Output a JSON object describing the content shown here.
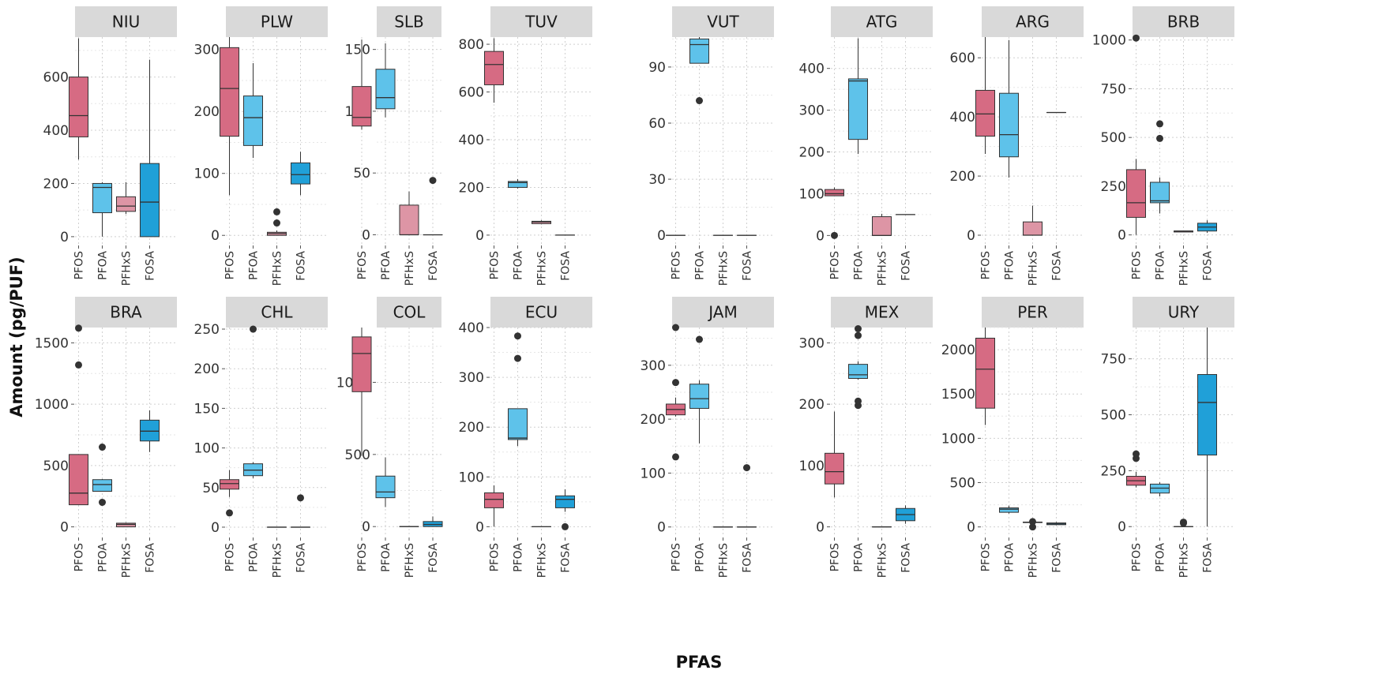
{
  "chart_data": {
    "type": "box",
    "xlabel": "PFAS",
    "ylabel": "Amount (pg/PUF)",
    "categories": [
      "PFOS",
      "PFOA",
      "PFHxS",
      "FOSA"
    ],
    "colors": {
      "PFOS": "#d66b83",
      "PFOA": "#5ec2ea",
      "PFHxS": "#dd95a5",
      "FOSA": "#20a0d8"
    },
    "grid": "dotted",
    "panels": [
      {
        "name": "NIU",
        "ylim": [
          -30,
          750
        ],
        "yticks": [
          0,
          200,
          400,
          600
        ],
        "boxes": [
          {
            "cat": "PFOS",
            "min": 290,
            "q1": 375,
            "median": 455,
            "q3": 600,
            "max": 745,
            "outliers": []
          },
          {
            "cat": "PFOA",
            "min": 0,
            "q1": 90,
            "median": 185,
            "q3": 200,
            "max": 205,
            "outliers": []
          },
          {
            "cat": "PFHxS",
            "min": 85,
            "q1": 95,
            "median": 115,
            "q3": 150,
            "max": 205,
            "outliers": []
          },
          {
            "cat": "FOSA",
            "min": 0,
            "q1": 0,
            "median": 130,
            "q3": 275,
            "max": 665,
            "outliers": []
          }
        ]
      },
      {
        "name": "PLW",
        "ylim": [
          -15,
          320
        ],
        "yticks": [
          0,
          100,
          200,
          300
        ],
        "boxes": [
          {
            "cat": "PFOS",
            "min": 65,
            "q1": 160,
            "median": 237,
            "q3": 303,
            "max": 320,
            "outliers": []
          },
          {
            "cat": "PFOA",
            "min": 125,
            "q1": 145,
            "median": 190,
            "q3": 225,
            "max": 278,
            "outliers": []
          },
          {
            "cat": "PFHxS",
            "min": 0,
            "q1": 0,
            "median": 3,
            "q3": 5,
            "max": 8,
            "outliers": [
              20,
              38
            ]
          },
          {
            "cat": "FOSA",
            "min": 65,
            "q1": 83,
            "median": 98,
            "q3": 117,
            "max": 135,
            "outliers": []
          }
        ]
      },
      {
        "name": "SLB",
        "ylim": [
          -8,
          160
        ],
        "yticks": [
          0,
          50,
          100,
          150
        ],
        "boxes": [
          {
            "cat": "PFOS",
            "min": 85,
            "q1": 88,
            "median": 95,
            "q3": 120,
            "max": 158,
            "outliers": []
          },
          {
            "cat": "PFOA",
            "min": 95,
            "q1": 102,
            "median": 111,
            "q3": 134,
            "max": 155,
            "outliers": []
          },
          {
            "cat": "PFHxS",
            "min": 0,
            "q1": 0,
            "median": 0,
            "q3": 24,
            "max": 35,
            "outliers": []
          },
          {
            "cat": "FOSA",
            "min": 0,
            "q1": 0,
            "median": 0,
            "q3": 0,
            "max": 0,
            "outliers": [
              44
            ]
          }
        ]
      },
      {
        "name": "TUV",
        "ylim": [
          -40,
          830
        ],
        "yticks": [
          0,
          200,
          400,
          600,
          800
        ],
        "boxes": [
          {
            "cat": "PFOS",
            "min": 555,
            "q1": 630,
            "median": 715,
            "q3": 770,
            "max": 825,
            "outliers": []
          },
          {
            "cat": "PFOA",
            "min": 195,
            "q1": 200,
            "median": 220,
            "q3": 225,
            "max": 235,
            "outliers": []
          },
          {
            "cat": "PFHxS",
            "min": 45,
            "q1": 48,
            "median": 55,
            "q3": 58,
            "max": 62,
            "outliers": []
          },
          {
            "cat": "FOSA",
            "min": 0,
            "q1": 0,
            "median": 0,
            "q3": 0,
            "max": 0,
            "outliers": []
          }
        ]
      },
      {
        "name": "VUT",
        "ylim": [
          -5,
          106
        ],
        "yticks": [
          0,
          30,
          60,
          90
        ],
        "boxes": [
          {
            "cat": "PFOS",
            "min": 0,
            "q1": 0,
            "median": 0,
            "q3": 0,
            "max": 0,
            "outliers": []
          },
          {
            "cat": "PFOA",
            "min": 92,
            "q1": 92,
            "median": 102,
            "q3": 105,
            "max": 106,
            "outliers": [
              72
            ]
          },
          {
            "cat": "PFHxS",
            "min": 0,
            "q1": 0,
            "median": 0,
            "q3": 0,
            "max": 0,
            "outliers": []
          },
          {
            "cat": "FOSA",
            "min": 0,
            "q1": 0,
            "median": 0,
            "q3": 0,
            "max": 0,
            "outliers": []
          }
        ]
      },
      {
        "name": "ATG",
        "ylim": [
          -22,
          475
        ],
        "yticks": [
          0,
          100,
          200,
          300,
          400
        ],
        "boxes": [
          {
            "cat": "PFOS",
            "min": 95,
            "q1": 95,
            "median": 100,
            "q3": 110,
            "max": 115,
            "outliers": [
              0
            ]
          },
          {
            "cat": "PFOA",
            "min": 195,
            "q1": 230,
            "median": 370,
            "q3": 375,
            "max": 472,
            "outliers": []
          },
          {
            "cat": "PFHxS",
            "min": 0,
            "q1": 0,
            "median": 0,
            "q3": 45,
            "max": 52,
            "outliers": []
          },
          {
            "cat": "FOSA",
            "min": 50,
            "q1": 50,
            "median": 50,
            "q3": 50,
            "max": 50,
            "outliers": []
          }
        ]
      },
      {
        "name": "ARG",
        "ylim": [
          -32,
          670
        ],
        "yticks": [
          0,
          200,
          400,
          600
        ],
        "boxes": [
          {
            "cat": "PFOS",
            "min": 275,
            "q1": 335,
            "median": 410,
            "q3": 490,
            "max": 670,
            "outliers": []
          },
          {
            "cat": "PFOA",
            "min": 195,
            "q1": 265,
            "median": 340,
            "q3": 480,
            "max": 660,
            "outliers": []
          },
          {
            "cat": "PFHxS",
            "min": 0,
            "q1": 0,
            "median": 0,
            "q3": 45,
            "max": 100,
            "outliers": []
          },
          {
            "cat": "FOSA",
            "min": 415,
            "q1": 415,
            "median": 415,
            "q3": 415,
            "max": 415,
            "outliers": []
          }
        ]
      },
      {
        "name": "BRB",
        "ylim": [
          -50,
          1015
        ],
        "yticks": [
          0,
          250,
          500,
          750,
          1000
        ],
        "boxes": [
          {
            "cat": "PFOS",
            "min": 0,
            "q1": 90,
            "median": 165,
            "q3": 335,
            "max": 390,
            "outliers": [
              1010
            ]
          },
          {
            "cat": "PFOA",
            "min": 110,
            "q1": 165,
            "median": 175,
            "q3": 270,
            "max": 295,
            "outliers": [
              495,
              570
            ]
          },
          {
            "cat": "PFHxS",
            "min": 15,
            "q1": 15,
            "median": 20,
            "q3": 20,
            "max": 22,
            "outliers": []
          },
          {
            "cat": "FOSA",
            "min": 10,
            "q1": 20,
            "median": 40,
            "q3": 60,
            "max": 75,
            "outliers": []
          }
        ]
      },
      {
        "name": "BRA",
        "ylim": [
          -80,
          1625
        ],
        "yticks": [
          0,
          500,
          1000,
          1500
        ],
        "boxes": [
          {
            "cat": "PFOS",
            "min": 180,
            "q1": 180,
            "median": 275,
            "q3": 590,
            "max": 590,
            "outliers": [
              1320,
              1620
            ]
          },
          {
            "cat": "PFOA",
            "min": 290,
            "q1": 290,
            "median": 345,
            "q3": 385,
            "max": 390,
            "outliers": [
              200,
              650
            ]
          },
          {
            "cat": "PFHxS",
            "min": 0,
            "q1": 0,
            "median": 20,
            "q3": 30,
            "max": 35,
            "outliers": []
          },
          {
            "cat": "FOSA",
            "min": 610,
            "q1": 700,
            "median": 780,
            "q3": 870,
            "max": 950,
            "outliers": []
          }
        ]
      },
      {
        "name": "CHL",
        "ylim": [
          -12,
          252
        ],
        "yticks": [
          0,
          50,
          100,
          150,
          200,
          250
        ],
        "boxes": [
          {
            "cat": "PFOS",
            "min": 38,
            "q1": 48,
            "median": 55,
            "q3": 60,
            "max": 72,
            "outliers": [
              18
            ]
          },
          {
            "cat": "PFOA",
            "min": 62,
            "q1": 65,
            "median": 72,
            "q3": 80,
            "max": 82,
            "outliers": [
              250
            ]
          },
          {
            "cat": "PFHxS",
            "min": 0,
            "q1": 0,
            "median": 0,
            "q3": 0,
            "max": 0,
            "outliers": []
          },
          {
            "cat": "FOSA",
            "min": 0,
            "q1": 0,
            "median": 0,
            "q3": 0,
            "max": 0,
            "outliers": [
              37
            ]
          }
        ]
      },
      {
        "name": "COL",
        "ylim": [
          -70,
          1380
        ],
        "yticks": [
          0,
          500,
          1000
        ],
        "boxes": [
          {
            "cat": "PFOS",
            "min": 490,
            "q1": 935,
            "median": 1200,
            "q3": 1315,
            "max": 1380,
            "outliers": []
          },
          {
            "cat": "PFOA",
            "min": 135,
            "q1": 200,
            "median": 240,
            "q3": 350,
            "max": 480,
            "outliers": []
          },
          {
            "cat": "PFHxS",
            "min": 0,
            "q1": 0,
            "median": 0,
            "q3": 0,
            "max": 0,
            "outliers": []
          },
          {
            "cat": "FOSA",
            "min": 0,
            "q1": 0,
            "median": 15,
            "q3": 35,
            "max": 70,
            "outliers": []
          }
        ]
      },
      {
        "name": "ECU",
        "ylim": [
          -20,
          400
        ],
        "yticks": [
          0,
          100,
          200,
          300,
          400
        ],
        "boxes": [
          {
            "cat": "PFOS",
            "min": 0,
            "q1": 38,
            "median": 55,
            "q3": 68,
            "max": 83,
            "outliers": []
          },
          {
            "cat": "PFOA",
            "min": 162,
            "q1": 175,
            "median": 178,
            "q3": 237,
            "max": 237,
            "outliers": [
              338,
              383
            ]
          },
          {
            "cat": "PFHxS",
            "min": 0,
            "q1": 0,
            "median": 0,
            "q3": 0,
            "max": 0,
            "outliers": []
          },
          {
            "cat": "FOSA",
            "min": 30,
            "q1": 38,
            "median": 55,
            "q3": 62,
            "max": 75,
            "outliers": [
              0
            ]
          }
        ]
      },
      {
        "name": "JAM",
        "ylim": [
          -18,
          370
        ],
        "yticks": [
          0,
          100,
          200,
          300
        ],
        "boxes": [
          {
            "cat": "PFOS",
            "min": 205,
            "q1": 208,
            "median": 218,
            "q3": 228,
            "max": 240,
            "outliers": [
              130,
              268,
              370
            ]
          },
          {
            "cat": "PFOA",
            "min": 155,
            "q1": 220,
            "median": 238,
            "q3": 265,
            "max": 272,
            "outliers": [
              348
            ]
          },
          {
            "cat": "PFHxS",
            "min": 0,
            "q1": 0,
            "median": 0,
            "q3": 0,
            "max": 0,
            "outliers": []
          },
          {
            "cat": "FOSA",
            "min": 0,
            "q1": 0,
            "median": 0,
            "q3": 0,
            "max": 0,
            "outliers": [
              110
            ]
          }
        ]
      },
      {
        "name": "MEX",
        "ylim": [
          -16,
          325
        ],
        "yticks": [
          0,
          100,
          200,
          300
        ],
        "boxes": [
          {
            "cat": "PFOS",
            "min": 48,
            "q1": 70,
            "median": 90,
            "q3": 120,
            "max": 188,
            "outliers": []
          },
          {
            "cat": "PFOA",
            "min": 240,
            "q1": 242,
            "median": 248,
            "q3": 265,
            "max": 270,
            "outliers": [
              198,
              205,
              312,
              323
            ]
          },
          {
            "cat": "PFHxS",
            "min": 0,
            "q1": 0,
            "median": 0,
            "q3": 0,
            "max": 0,
            "outliers": []
          },
          {
            "cat": "FOSA",
            "min": 5,
            "q1": 10,
            "median": 20,
            "q3": 30,
            "max": 35,
            "outliers": []
          }
        ]
      },
      {
        "name": "PER",
        "ylim": [
          -110,
          2250
        ],
        "yticks": [
          0,
          500,
          1000,
          1500,
          2000
        ],
        "boxes": [
          {
            "cat": "PFOS",
            "min": 1150,
            "q1": 1340,
            "median": 1780,
            "q3": 2130,
            "max": 2250,
            "outliers": []
          },
          {
            "cat": "PFOA",
            "min": 150,
            "q1": 165,
            "median": 200,
            "q3": 215,
            "max": 240,
            "outliers": []
          },
          {
            "cat": "PFHxS",
            "min": 0,
            "q1": 50,
            "median": 50,
            "q3": 55,
            "max": 55,
            "outliers": [
              0,
              60
            ]
          },
          {
            "cat": "FOSA",
            "min": 20,
            "q1": 25,
            "median": 35,
            "q3": 45,
            "max": 55,
            "outliers": []
          }
        ]
      },
      {
        "name": "URY",
        "ylim": [
          -45,
          890
        ],
        "yticks": [
          0,
          250,
          500,
          750
        ],
        "boxes": [
          {
            "cat": "PFOS",
            "min": 175,
            "q1": 185,
            "median": 205,
            "q3": 225,
            "max": 245,
            "outliers": [
              305,
              325
            ]
          },
          {
            "cat": "PFOA",
            "min": 135,
            "q1": 150,
            "median": 172,
            "q3": 190,
            "max": 198,
            "outliers": []
          },
          {
            "cat": "PFHxS",
            "min": 0,
            "q1": 0,
            "median": 0,
            "q3": 0,
            "max": 0,
            "outliers": [
              15,
              20
            ]
          },
          {
            "cat": "FOSA",
            "min": 0,
            "q1": 320,
            "median": 555,
            "q3": 680,
            "max": 890,
            "outliers": []
          }
        ]
      }
    ]
  }
}
